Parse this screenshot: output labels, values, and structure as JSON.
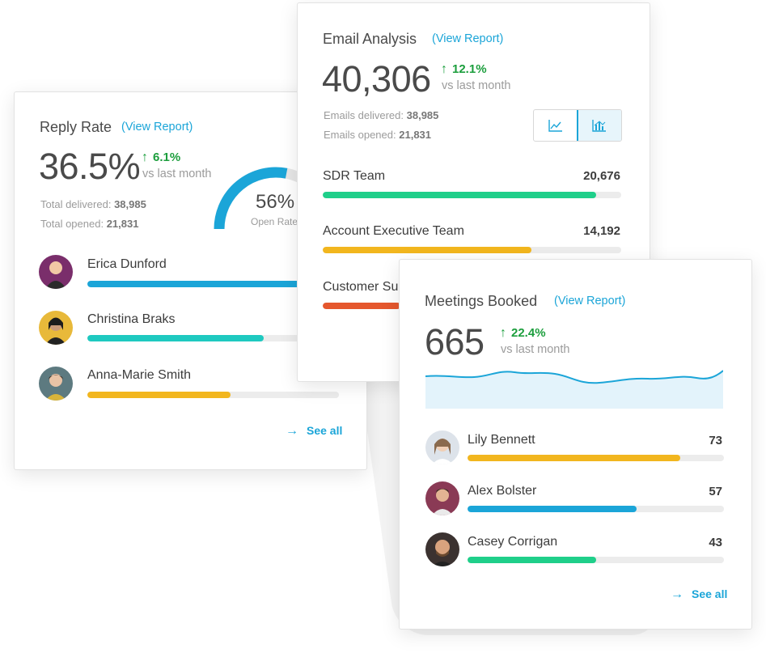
{
  "reply_rate": {
    "title": "Reply Rate",
    "view_report": "(View Report)",
    "value": "36.5%",
    "delta": "6.1%",
    "delta_note": "vs last month",
    "delivered_label": "Total delivered:",
    "delivered_value": "38,985",
    "opened_label": "Total opened:",
    "opened_value": "21,831",
    "gauge": {
      "value": "56%",
      "label": "Open Rate",
      "fraction": 0.56,
      "color": "#1ba5d8"
    },
    "people": [
      {
        "name": "Erica Dunford",
        "fraction": 1.0,
        "color": "#1ba5d8",
        "avatar_bg": "#7a2e6b"
      },
      {
        "name": "Christina Braks",
        "fraction": 0.7,
        "color": "#1ec9c0",
        "avatar_bg": "#e8b93a"
      },
      {
        "name": "Anna-Marie Smith",
        "fraction": 0.57,
        "color": "#f2b61e",
        "avatar_bg": "#5d7a80"
      }
    ],
    "see_all": "See all"
  },
  "email_analysis": {
    "title": "Email Analysis",
    "view_report": "(View Report)",
    "value": "40,306",
    "delta": "12.1%",
    "delta_note": "vs last month",
    "delivered_label": "Emails delivered:",
    "delivered_value": "38,985",
    "opened_label": "Emails opened:",
    "opened_value": "21,831",
    "toggle": [
      "line-chart-icon",
      "bar-chart-icon"
    ],
    "teams": [
      {
        "name": "SDR Team",
        "count": "20,676",
        "fraction": 0.915,
        "color": "#1fcf8a"
      },
      {
        "name": "Account Executive Team",
        "count": "14,192",
        "fraction": 0.7,
        "color": "#f2b61e"
      },
      {
        "name": "Customer Su",
        "count": "",
        "fraction": 0.26,
        "color": "#e5572d"
      }
    ]
  },
  "meetings_booked": {
    "title": "Meetings Booked",
    "view_report": "(View Report)",
    "value": "665",
    "delta": "22.4%",
    "delta_note": "vs last month",
    "sparkline_color": "#1ba5d8",
    "sparkline_fill": "#e3f3fb",
    "people": [
      {
        "name": "Lily Bennett",
        "count": "73",
        "fraction": 0.83,
        "color": "#f2b61e",
        "avatar_bg": "#dde3ea"
      },
      {
        "name": "Alex Bolster",
        "count": "57",
        "fraction": 0.66,
        "color": "#1ba5d8",
        "avatar_bg": "#8a3a55"
      },
      {
        "name": "Casey Corrigan",
        "count": "43",
        "fraction": 0.5,
        "color": "#1fcf8a",
        "avatar_bg": "#3b3230"
      }
    ],
    "see_all": "See all"
  }
}
